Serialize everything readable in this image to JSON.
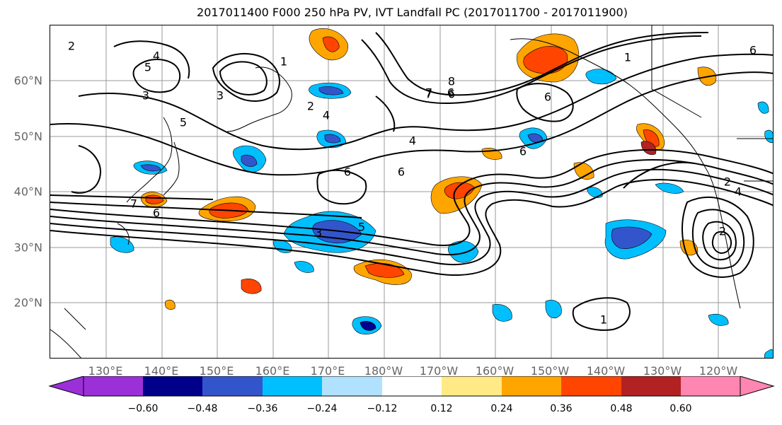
{
  "title": "2017011400 F000 250 hPa PV, IVT Landfall PC (2017011700 - 2017011900)",
  "latitude_labels": [
    "60°N",
    "50°N",
    "40°N",
    "30°N",
    "20°N"
  ],
  "longitude_labels": [
    "130°E",
    "140°E",
    "150°E",
    "160°E",
    "170°E",
    "180°W",
    "170°W",
    "160°W",
    "150°W",
    "140°W",
    "130°W",
    "120°W"
  ],
  "colorbar": {
    "ticks": [
      "−0.60",
      "−0.48",
      "−0.36",
      "−0.24",
      "−0.12",
      "0.12",
      "0.24",
      "0.36",
      "0.48",
      "0.60"
    ],
    "colors": [
      "#9b30d9",
      "#00008b",
      "#3355cc",
      "#00bfff",
      "#b0e2ff",
      "#ffffff",
      "#ffea85",
      "#ffa500",
      "#ff4500",
      "#b22222",
      "#ff86b0"
    ]
  },
  "contour_labels": [
    "2",
    "4",
    "5",
    "3",
    "1",
    "2",
    "4",
    "3",
    "5",
    "7",
    "6",
    "8",
    "7",
    "6",
    "6",
    "4",
    "6",
    "6",
    "6",
    "3",
    "5",
    "7",
    "6",
    "1",
    "2",
    "4",
    "2",
    "1",
    "6"
  ],
  "contour_color": "#000000",
  "grid_color": "#999999"
}
